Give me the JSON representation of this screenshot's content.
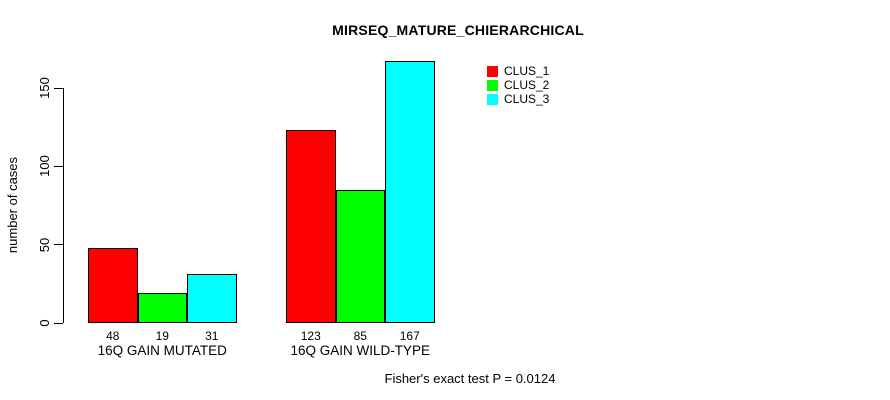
{
  "chart_data": {
    "type": "bar",
    "title": "MIRSEQ_MATURE_CHIERARCHICAL",
    "ylabel": "number of cases",
    "xlabel": "",
    "annotation": "Fisher's exact test P = 0.0124",
    "categories": [
      "16Q GAIN MUTATED",
      "16Q GAIN WILD-TYPE"
    ],
    "series": [
      {
        "name": "CLUS_1",
        "color": "#ff0000",
        "values": [
          48,
          123
        ]
      },
      {
        "name": "CLUS_2",
        "color": "#00ff00",
        "values": [
          19,
          85
        ]
      },
      {
        "name": "CLUS_3",
        "color": "#00ffff",
        "values": [
          31,
          167
        ]
      }
    ],
    "value_labels": [
      [
        "48",
        "19",
        "31"
      ],
      [
        "123",
        "85",
        "167"
      ]
    ],
    "yticks": [
      0,
      50,
      100,
      150
    ],
    "ylim": [
      0,
      167
    ],
    "grid": false,
    "legend_position": "topright",
    "bar_border_color": "#000000",
    "background_color": "#ffffff",
    "text_color": "#000000"
  }
}
